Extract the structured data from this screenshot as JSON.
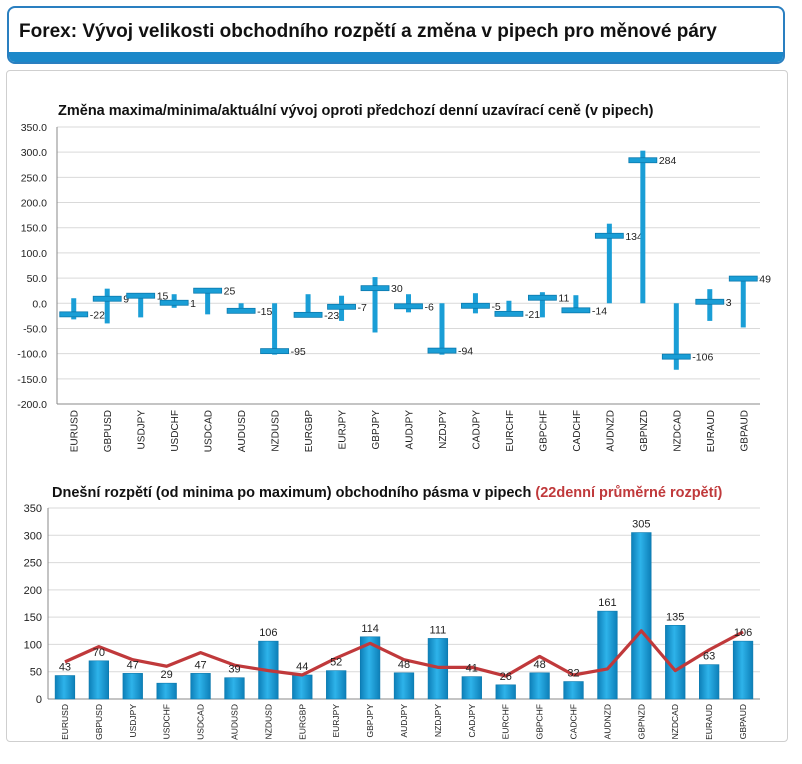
{
  "page_title": "Forex: Vývoj velikosti obchodního rozpětí a změna v pipech pro měnové páry",
  "colors": {
    "bar": "#1a9ed6",
    "bar_dark": "#0b79ad",
    "line": "#c0393b",
    "header_border": "#2a7fc0"
  },
  "chart_data": [
    {
      "type": "bar",
      "title": "Změna maxima/minima/aktuální vývoj oproti předchozí denní uzavírací ceně (v pipech)",
      "categories": [
        "EURUSD",
        "GBPUSD",
        "USDJPY",
        "USDCHF",
        "USDCAD",
        "AUDUSD",
        "NZDUSD",
        "EURGBP",
        "EURJPY",
        "GBPJPY",
        "AUDJPY",
        "NZDJPY",
        "CADJPY",
        "EURCHF",
        "GBPCHF",
        "CADCHF",
        "AUDNZD",
        "GBPNZD",
        "NZDCAD",
        "EURAUD",
        "GBPAUD"
      ],
      "high": [
        10,
        29,
        18,
        18,
        28,
        0,
        0,
        18,
        15,
        52,
        18,
        0,
        20,
        5,
        22,
        16,
        158,
        303,
        0,
        28,
        52
      ],
      "low": [
        -32,
        -40,
        -28,
        -9,
        -22,
        -18,
        -102,
        -25,
        -35,
        -58,
        -18,
        -102,
        -20,
        -24,
        -28,
        -18,
        0,
        0,
        -132,
        -35,
        -48
      ],
      "current": [
        -22,
        9,
        15,
        1,
        25,
        -15,
        -95,
        -23,
        -7,
        30,
        -6,
        -94,
        -5,
        -21,
        11,
        -14,
        134,
        284,
        -106,
        3,
        49
      ],
      "ylim": [
        -200,
        350
      ],
      "yticks": [
        "350.0",
        "300.0",
        "250.0",
        "200.0",
        "150.0",
        "100.0",
        "50.0",
        "0.0",
        "-50.0",
        "-100.0",
        "-150.0",
        "-200.0"
      ],
      "ytick_values": [
        350,
        300,
        250,
        200,
        150,
        100,
        50,
        0,
        -50,
        -100,
        -150,
        -200
      ],
      "grid": true
    },
    {
      "type": "bar",
      "title": "Dnešní rozpětí (od minima po maximum) obchodního pásma v pipech",
      "title_highlight": "(22denní průměrné rozpětí)",
      "categories": [
        "EURUSD",
        "GBPUSD",
        "USDJPY",
        "USDCHF",
        "USDCAD",
        "AUDUSD",
        "NZDUSD",
        "EURGBP",
        "EURJPY",
        "GBPJPY",
        "AUDJPY",
        "NZDJPY",
        "CADJPY",
        "EURCHF",
        "GBPCHF",
        "CADCHF",
        "AUDNZD",
        "GBPNZD",
        "NZDCAD",
        "EURAUD",
        "GBPAUD"
      ],
      "values": [
        43,
        70,
        47,
        29,
        47,
        39,
        106,
        44,
        52,
        114,
        48,
        111,
        41,
        26,
        48,
        32,
        161,
        305,
        135,
        63,
        106
      ],
      "average_22d": [
        68,
        96,
        72,
        60,
        85,
        62,
        52,
        44,
        75,
        102,
        72,
        58,
        58,
        42,
        78,
        44,
        55,
        125,
        52,
        90,
        123
      ],
      "ylim": [
        0,
        350
      ],
      "yticks": [
        "350",
        "300",
        "250",
        "200",
        "150",
        "100",
        "50",
        "0"
      ],
      "ytick_values": [
        350,
        300,
        250,
        200,
        150,
        100,
        50,
        0
      ],
      "grid": true
    }
  ]
}
